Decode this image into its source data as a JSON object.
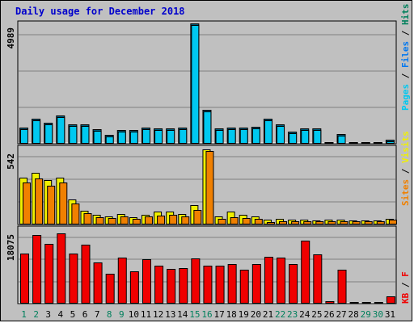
{
  "title": "Daily usage for December 2018",
  "colors": {
    "pages": "#00c8f0",
    "files": "#0078f0",
    "hits": "#00805c",
    "visits": "#f0f000",
    "sites": "#f08000",
    "kbytes": "#f00000",
    "weekday_label": "#000000",
    "weekend_label": "#00805c",
    "background": "#c0c0c0",
    "title_color": "#0000cc"
  },
  "chart_data": [
    {
      "type": "bar",
      "name": "hits-files-pages",
      "categories": [
        "1",
        "2",
        "3",
        "4",
        "5",
        "6",
        "7",
        "8",
        "9",
        "10",
        "11",
        "12",
        "13",
        "14",
        "15",
        "16",
        "17",
        "18",
        "19",
        "20",
        "21",
        "22",
        "23",
        "24",
        "25",
        "26",
        "27",
        "28",
        "29",
        "30",
        "31"
      ],
      "ymax_label": "4989",
      "ylim": [
        0,
        4989
      ],
      "legend": [
        "Pages",
        "Files",
        "Hits"
      ],
      "series": [
        {
          "name": "Pages",
          "values": [
            634,
            1009,
            837,
            1155,
            781,
            781,
            566,
            348,
            543,
            543,
            653,
            623,
            623,
            641,
            4989,
            1380,
            623,
            643,
            652,
            690,
            1009,
            767,
            456,
            616,
            616,
            10,
            379,
            8,
            8,
            8,
            120
          ]
        },
        {
          "name": "Hits",
          "values": [
            634,
            1009,
            837,
            1155,
            781,
            781,
            566,
            348,
            543,
            543,
            653,
            623,
            623,
            641,
            4989,
            1380,
            623,
            643,
            652,
            690,
            1009,
            767,
            456,
            616,
            616,
            10,
            379,
            8,
            8,
            8,
            120
          ]
        }
      ]
    },
    {
      "type": "bar",
      "name": "visits-sites",
      "categories": [
        "1",
        "2",
        "3",
        "4",
        "5",
        "6",
        "7",
        "8",
        "9",
        "10",
        "11",
        "12",
        "13",
        "14",
        "15",
        "16",
        "17",
        "18",
        "19",
        "20",
        "21",
        "22",
        "23",
        "24",
        "25",
        "26",
        "27",
        "28",
        "29",
        "30",
        "31"
      ],
      "ymax_label": "542",
      "ylim": [
        0,
        542
      ],
      "legend": [
        "Sites",
        "Visits"
      ],
      "series": [
        {
          "name": "Visits",
          "values": [
            336,
            373,
            321,
            336,
            174,
            92,
            65,
            53,
            71,
            48,
            65,
            86,
            86,
            71,
            136,
            542,
            51,
            86,
            67,
            53,
            28,
            34,
            30,
            32,
            26,
            28,
            30,
            26,
            26,
            24,
            38
          ]
        },
        {
          "name": "Sites",
          "values": [
            302,
            329,
            277,
            299,
            148,
            76,
            46,
            40,
            55,
            38,
            51,
            61,
            63,
            51,
            103,
            528,
            34,
            50,
            42,
            33,
            12,
            17,
            16,
            16,
            17,
            18,
            19,
            18,
            18,
            17,
            29
          ]
        }
      ]
    },
    {
      "type": "bar",
      "name": "kbytes",
      "categories": [
        "1",
        "2",
        "3",
        "4",
        "5",
        "6",
        "7",
        "8",
        "9",
        "10",
        "11",
        "12",
        "13",
        "14",
        "15",
        "16",
        "17",
        "18",
        "19",
        "20",
        "21",
        "22",
        "23",
        "24",
        "25",
        "26",
        "27",
        "28",
        "29",
        "30",
        "31"
      ],
      "ymax_label": "18075",
      "ylim": [
        0,
        18075
      ],
      "legend": [
        "KB",
        "F"
      ],
      "series": [
        {
          "name": "KB",
          "values": [
            12300,
            16900,
            14700,
            17200,
            12300,
            14500,
            10000,
            7200,
            11300,
            7800,
            10800,
            9300,
            8400,
            8600,
            11000,
            9300,
            9300,
            9600,
            8200,
            9700,
            11500,
            11300,
            9700,
            15400,
            12100,
            400,
            8200,
            200,
            200,
            200,
            1600
          ]
        }
      ]
    }
  ]
}
